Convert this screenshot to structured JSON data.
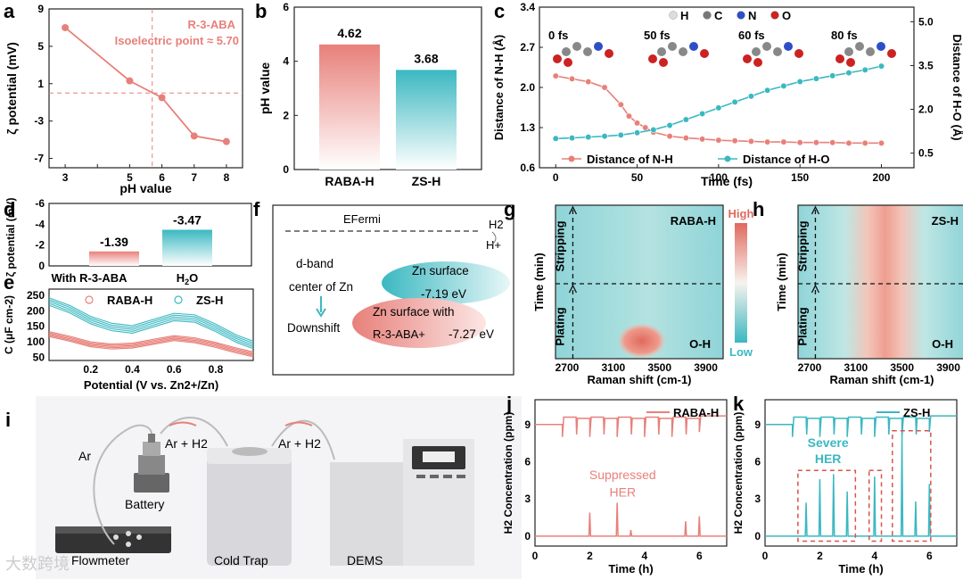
{
  "panel_labels": {
    "a": "a",
    "b": "b",
    "c": "c",
    "d": "d",
    "e": "e",
    "f": "f",
    "g": "g",
    "h": "h",
    "i": "i",
    "j": "j",
    "k": "k"
  },
  "colors": {
    "red": "#e8807a",
    "teal": "#3bb8c1",
    "dark_red": "#d9534f"
  },
  "watermark": "大数跨境",
  "chart_data": [
    {
      "id": "a",
      "type": "line",
      "title": "R-3-ABA",
      "subtitle": "Isoelectric point ≈ 5.70",
      "xlabel": "pH value",
      "ylabel": "ζ potential (mV)",
      "x": [
        3,
        5,
        6,
        7,
        8
      ],
      "y": [
        7,
        1.3,
        -0.5,
        -4.6,
        -5.2
      ],
      "xticks": [
        3,
        4,
        5,
        6,
        7,
        8
      ],
      "yticks": [
        -7,
        -3,
        1,
        5,
        9
      ],
      "xlim": [
        2.5,
        8.5
      ],
      "ylim": [
        -8,
        9
      ],
      "vline_x": 5.7,
      "hline_y": 0
    },
    {
      "id": "b",
      "type": "bar",
      "ylabel": "pH value",
      "categories": [
        "RABA-H",
        "ZS-H"
      ],
      "values": [
        4.62,
        3.68
      ],
      "value_labels": [
        "4.62",
        "3.68"
      ],
      "yticks": [
        0,
        2,
        4,
        6
      ],
      "ylim": [
        0,
        6
      ]
    },
    {
      "id": "c",
      "type": "line",
      "xlabel": "Time (fs)",
      "ylabel": "Distance of N-H (Å)",
      "ylabel2": "Distance of H-O (Å)",
      "xticks": [
        0,
        50,
        100,
        150,
        200
      ],
      "yticks": [
        0.6,
        1.3,
        2.0,
        2.7,
        3.4
      ],
      "yticks2": [
        0.5,
        2.0,
        3.5,
        5.0
      ],
      "ylim": [
        0.6,
        3.4
      ],
      "ylim2": [
        0,
        5.5
      ],
      "legend_atoms": [
        "H",
        "C",
        "N",
        "O"
      ],
      "time_labels": [
        "0 fs",
        "50 fs",
        "60 fs",
        "80 fs"
      ],
      "series": [
        {
          "name": "Distance of N-H",
          "axis": "left",
          "x": [
            0,
            10,
            20,
            30,
            40,
            45,
            50,
            55,
            60,
            70,
            80,
            90,
            100,
            110,
            120,
            130,
            140,
            150,
            160,
            170,
            180,
            190,
            200
          ],
          "y": [
            2.2,
            2.15,
            2.1,
            2.0,
            1.7,
            1.5,
            1.38,
            1.3,
            1.22,
            1.15,
            1.12,
            1.1,
            1.08,
            1.07,
            1.06,
            1.05,
            1.05,
            1.04,
            1.04,
            1.04,
            1.03,
            1.03,
            1.03
          ]
        },
        {
          "name": "Distance of H-O",
          "axis": "right",
          "x": [
            0,
            10,
            20,
            30,
            40,
            50,
            60,
            70,
            80,
            90,
            100,
            110,
            120,
            130,
            140,
            150,
            160,
            170,
            180,
            190,
            200
          ],
          "y": [
            1.0,
            1.02,
            1.05,
            1.08,
            1.12,
            1.2,
            1.3,
            1.45,
            1.65,
            1.85,
            2.05,
            2.25,
            2.45,
            2.65,
            2.8,
            2.95,
            3.05,
            3.15,
            3.25,
            3.35,
            3.48
          ]
        }
      ]
    },
    {
      "id": "d",
      "type": "bar",
      "ylabel": "ζ potential (mV)",
      "categories": [
        "With R-3-ABA",
        "H2O"
      ],
      "values": [
        -1.39,
        -3.47
      ],
      "value_labels": [
        "-1.39",
        "-3.47"
      ],
      "yticks": [
        0,
        -2,
        -4,
        -6
      ],
      "ylim": [
        0,
        -6
      ]
    },
    {
      "id": "e",
      "type": "line",
      "xlabel": "Potential (V vs. Zn2+/Zn)",
      "ylabel": "C (μF cm-2)",
      "xticks": [
        0.2,
        0.4,
        0.6,
        0.8
      ],
      "yticks": [
        50,
        100,
        150,
        200,
        250
      ],
      "xlim": [
        0,
        0.98
      ],
      "ylim": [
        40,
        270
      ],
      "series": [
        {
          "name": "RABA-H",
          "x": [
            0,
            0.1,
            0.2,
            0.3,
            0.4,
            0.5,
            0.6,
            0.7,
            0.8,
            0.9,
            0.98
          ],
          "y": [
            125,
            110,
            92,
            85,
            88,
            100,
            112,
            105,
            90,
            72,
            60
          ]
        },
        {
          "name": "ZS-H",
          "x": [
            0,
            0.1,
            0.2,
            0.3,
            0.4,
            0.5,
            0.6,
            0.7,
            0.8,
            0.9,
            0.98
          ],
          "y": [
            230,
            205,
            170,
            148,
            140,
            160,
            180,
            175,
            145,
            110,
            90
          ]
        }
      ]
    },
    {
      "id": "f",
      "type": "diagram",
      "efermi": "EFermi",
      "h2": "H2",
      "hplus": "H+",
      "dband": "d-band",
      "center": "center of Zn",
      "downshift": "Downshift",
      "zn_surface": "Zn surface",
      "zn_surface_energy": "-7.19 eV",
      "zn_surface_with": "Zn surface with",
      "raba_label": "R-3-ABA+",
      "raba_energy": "-7.27 eV"
    },
    {
      "id": "g",
      "type": "heatmap",
      "label": "RABA-H",
      "peak_label": "O-H",
      "xlabel": "Raman shift (cm-1)",
      "ylabel": "Time (min)",
      "xticks": [
        2700,
        3100,
        3500,
        3900
      ],
      "xlim": [
        2600,
        4050
      ],
      "phase_top": "Stripping",
      "phase_bottom": "Plating",
      "colorbar_high": "High",
      "colorbar_low": "Low"
    },
    {
      "id": "h",
      "type": "heatmap",
      "label": "ZS-H",
      "peak_label": "O-H",
      "xlabel": "Raman shift (cm-1)",
      "ylabel": "Time (min)",
      "xticks": [
        2700,
        3100,
        3500,
        3900
      ],
      "xlim": [
        2600,
        4050
      ],
      "phase_top": "Stripping",
      "phase_bottom": "Plating"
    },
    {
      "id": "j",
      "type": "line",
      "legend": "RABA-H",
      "annotation": "Suppressed HER",
      "xlabel": "Time (h)",
      "ylabel": "H2 Concentration (ppm)",
      "xticks": [
        0,
        2,
        4,
        6
      ],
      "yticks": [
        0,
        3,
        6,
        9
      ],
      "xlim": [
        0,
        7
      ],
      "ylim": [
        -0.8,
        11
      ],
      "peaks": [
        {
          "x": 2.0,
          "h": 1.9
        },
        {
          "x": 3.0,
          "h": 2.7
        },
        {
          "x": 3.5,
          "h": 0.5
        },
        {
          "x": 5.5,
          "h": 1.2
        },
        {
          "x": 6.0,
          "h": 1.6
        }
      ]
    },
    {
      "id": "k",
      "type": "line",
      "legend": "ZS-H",
      "annotation": "Severe HER",
      "xlabel": "Time (h)",
      "ylabel": "H2 Concentration (ppm)",
      "xticks": [
        0,
        2,
        4,
        6
      ],
      "yticks": [
        0,
        3,
        6,
        9
      ],
      "xlim": [
        0,
        7
      ],
      "ylim": [
        -0.8,
        11
      ],
      "peaks": [
        {
          "x": 1.5,
          "h": 2.7
        },
        {
          "x": 2.0,
          "h": 4.6
        },
        {
          "x": 2.5,
          "h": 5.0
        },
        {
          "x": 3.0,
          "h": 3.6
        },
        {
          "x": 4.0,
          "h": 4.8
        },
        {
          "x": 5.0,
          "h": 8.0
        },
        {
          "x": 5.5,
          "h": 2.8
        },
        {
          "x": 6.0,
          "h": 4.2
        }
      ]
    }
  ],
  "schematic_i": {
    "ar": "Ar",
    "ar_h2": "Ar + H2",
    "ar_h2_2": "Ar + H2",
    "battery": "Battery",
    "flowmeter": "Flowmeter",
    "cold_trap": "Cold Trap",
    "dems": "DEMS"
  }
}
